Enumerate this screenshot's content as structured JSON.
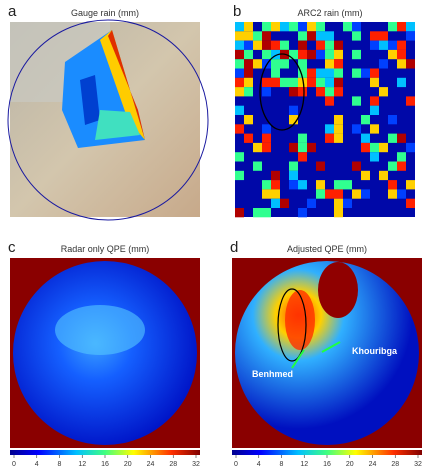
{
  "panels": [
    {
      "letter": "a",
      "title": "Gauge rain (mm)"
    },
    {
      "letter": "b",
      "title": "ARC2 rain (mm)"
    },
    {
      "letter": "c",
      "title": "Radar only QPE (mm)"
    },
    {
      "letter": "d",
      "title": "Adjusted QPE (mm)",
      "annotations": [
        "Khouribga",
        "Benhmed"
      ]
    }
  ],
  "colorbar": {
    "lim": [
      0,
      32
    ],
    "ticks": [
      0,
      4,
      8,
      12,
      16,
      20,
      24,
      28,
      32
    ]
  }
}
